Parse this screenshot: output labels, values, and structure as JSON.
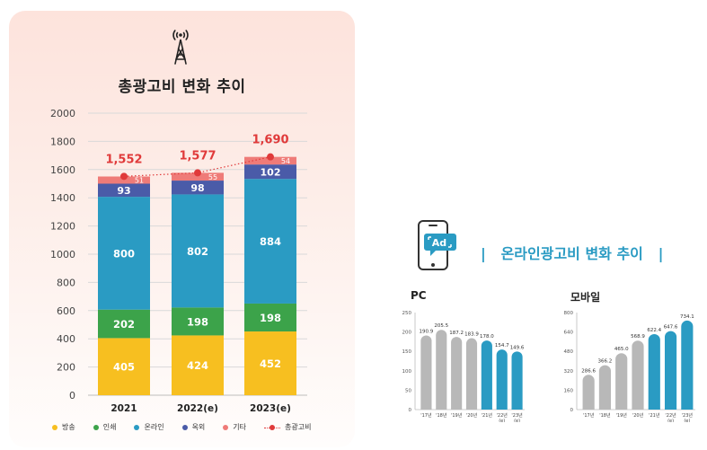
{
  "left": {
    "title": "총광고비 변화 추이",
    "icon": "radio-tower-icon"
  },
  "right": {
    "title": "온라인광고비 변화 추이",
    "bar_left": "|",
    "bar_right": "|",
    "icon": "ad-phone-icon",
    "icon_text": "Ad",
    "pc_label": "PC",
    "mobile_label": "모바일"
  },
  "colors": {
    "broadcast": "#f7bf20",
    "print": "#3ca34a",
    "online": "#2a9bc3",
    "outdoor": "#4a5ba8",
    "other": "#ef7b78",
    "total": "#e03a3a",
    "gray_bar": "#b8b8b8"
  },
  "chart_data": [
    {
      "type": "bar",
      "stacked": true,
      "title": "총광고비 변화 추이",
      "categories": [
        "2021",
        "2022(e)",
        "2023(e)"
      ],
      "series": [
        {
          "name": "방송",
          "values": [
            405,
            424,
            452
          ],
          "color": "#f7bf20"
        },
        {
          "name": "인쇄",
          "values": [
            202,
            198,
            198
          ],
          "color": "#3ca34a"
        },
        {
          "name": "온라인",
          "values": [
            800,
            802,
            884
          ],
          "color": "#2a9bc3"
        },
        {
          "name": "옥외",
          "values": [
            93,
            98,
            102
          ],
          "color": "#4a5ba8"
        },
        {
          "name": "기타",
          "values": [
            51,
            55,
            54
          ],
          "color": "#ef7b78"
        }
      ],
      "line": {
        "name": "총광고비",
        "values": [
          1552,
          1577,
          1690
        ],
        "labels": [
          "1,552",
          "1,577",
          "1,690"
        ]
      },
      "ylim": [
        0,
        2000
      ],
      "yticks": [
        0,
        200,
        400,
        600,
        800,
        1000,
        1200,
        1400,
        1600,
        1800,
        2000
      ],
      "legend": "bottom",
      "grid": true
    },
    {
      "type": "bar",
      "title": "PC",
      "categories": [
        "'17년",
        "'18년",
        "'19년",
        "'20년",
        "'21년",
        "'22년 (e)",
        "'23년 (e)"
      ],
      "values": [
        190.9,
        205.5,
        187.2,
        183.9,
        178.0,
        154.7,
        149.6
      ],
      "labels": [
        "190.9",
        "205.5",
        "187.2",
        "183.9",
        "178.0",
        "154.7",
        "149.6"
      ],
      "ylim": [
        0,
        250
      ],
      "yticks": [
        0,
        50,
        100,
        150,
        200,
        250
      ]
    },
    {
      "type": "bar",
      "title": "모바일",
      "categories": [
        "'17년",
        "'18년",
        "'19년",
        "'20년",
        "'21년",
        "'22년 (e)",
        "'23년 (e)"
      ],
      "values": [
        286.6,
        366.2,
        465.0,
        568.9,
        622.4,
        647.6,
        734.1
      ],
      "labels": [
        "286.6",
        "366.2",
        "465.0",
        "568.9",
        "622.4",
        "647.6",
        "734.1"
      ],
      "ylim": [
        0,
        800
      ],
      "yticks": [
        0,
        160,
        320,
        480,
        640,
        800
      ]
    }
  ]
}
